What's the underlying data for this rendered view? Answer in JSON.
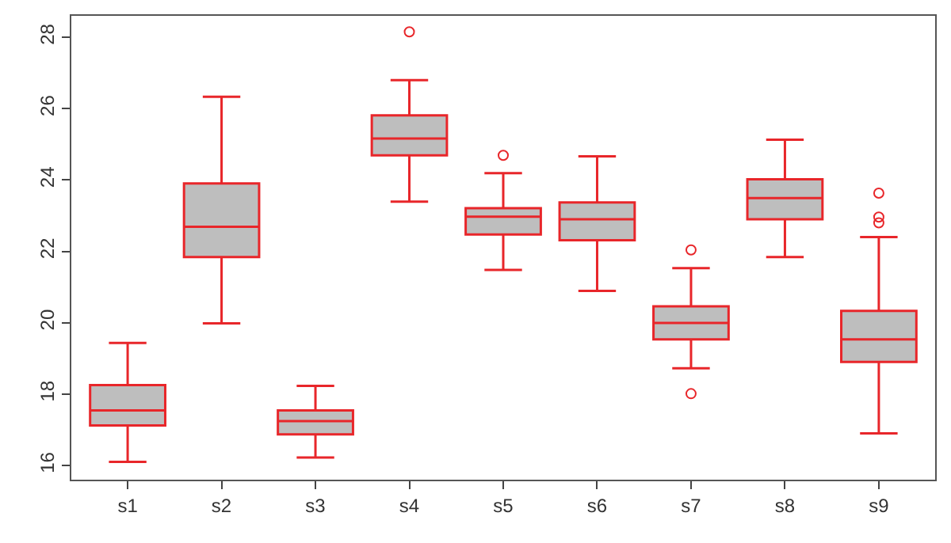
{
  "chart_data": {
    "type": "box",
    "categories": [
      "s1",
      "s2",
      "s3",
      "s4",
      "s5",
      "s6",
      "s7",
      "s8",
      "s9"
    ],
    "series": [
      {
        "color": "#e8262a",
        "boxes": [
          {
            "low": 16.1,
            "q1": 17.12,
            "median": 17.54,
            "q3": 18.25,
            "high": 19.43
          },
          {
            "low": 19.98,
            "q1": 21.84,
            "median": 22.69,
            "q3": 23.9,
            "high": 26.33
          },
          {
            "low": 16.22,
            "q1": 16.87,
            "median": 17.24,
            "q3": 17.54,
            "high": 18.23
          },
          {
            "low": 23.39,
            "q1": 24.69,
            "median": 25.16,
            "q3": 25.81,
            "high": 26.8,
            "outliers": [
              28.15
            ]
          },
          {
            "low": 21.48,
            "q1": 22.47,
            "median": 22.97,
            "q3": 23.21,
            "high": 24.19,
            "outliers": [
              24.69
            ]
          },
          {
            "low": 20.89,
            "q1": 22.31,
            "median": 22.9,
            "q3": 23.37,
            "high": 24.66
          },
          {
            "low": 18.72,
            "q1": 19.53,
            "median": 19.99,
            "q3": 20.46,
            "high": 21.53,
            "outliers": [
              22.04,
              18.01
            ]
          },
          {
            "low": 21.84,
            "q1": 22.9,
            "median": 23.49,
            "q3": 24.02,
            "high": 25.13
          },
          {
            "low": 16.9,
            "q1": 18.9,
            "median": 19.53,
            "q3": 20.33,
            "high": 22.4,
            "outliers": [
              23.63,
              22.96,
              22.8
            ]
          }
        ]
      }
    ],
    "ylim": [
      15.6,
      28.6
    ],
    "yticks": [
      16,
      18,
      20,
      22,
      24,
      26,
      28
    ]
  }
}
